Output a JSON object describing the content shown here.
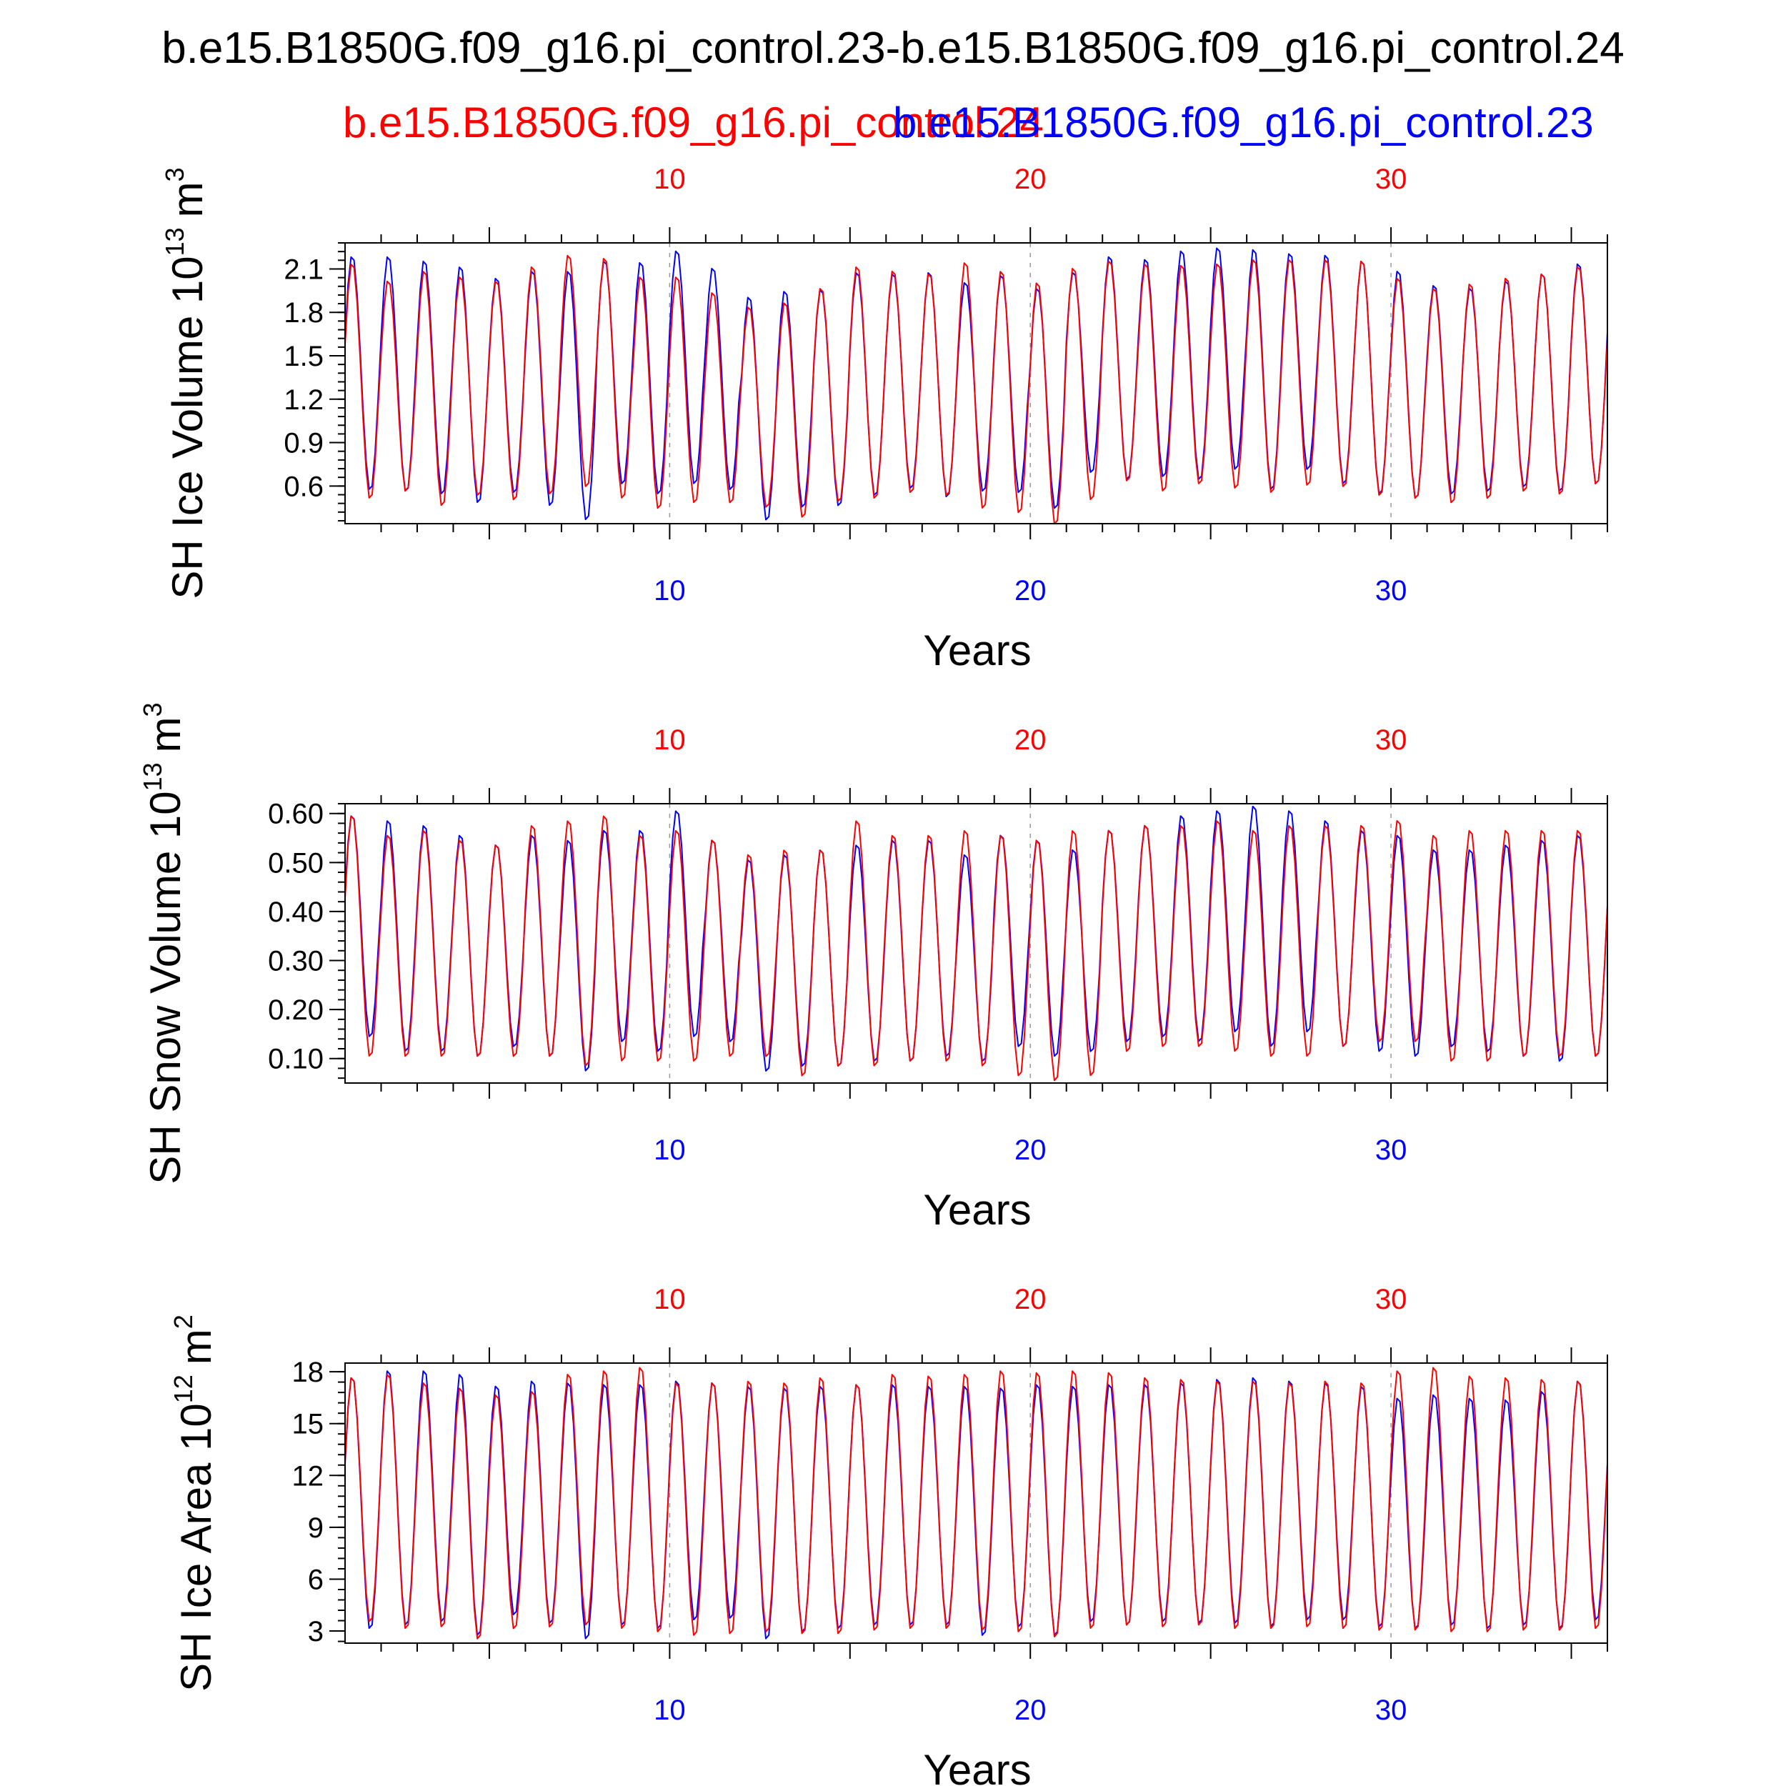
{
  "title": "b.e15.B1850G.f09_g16.pi_control.23-b.e15.B1850G.f09_g16.pi_control.24",
  "legend": [
    {
      "label": "b.e15.B1850G.f09_g16.pi_control.24",
      "color": "#ff0000"
    },
    {
      "label": "b.e15.B1850G.f09_g16.pi_control.23",
      "color": "#0000ff"
    }
  ],
  "colors": {
    "case24": "#ff0000",
    "case23": "#0000ff",
    "axes": "#000000",
    "reference_lines": "#999999"
  },
  "chart_data": [
    {
      "type": "line",
      "ylabel": "SH Ice Volume 10",
      "ylabel_exponent": "13",
      "ylabel_unit": "m",
      "ylabel_unit_exponent": "3",
      "xlabel": "Years",
      "xlim": [
        1.0,
        36.0
      ],
      "ylim": [
        0.34,
        2.28
      ],
      "yticks": [
        0.6,
        0.9,
        1.2,
        1.5,
        1.8,
        2.1
      ],
      "ytick_labels": [
        "0.6",
        "0.9",
        "1.2",
        "1.5",
        "1.8",
        "2.1"
      ],
      "xticks_top": [
        10,
        20,
        30
      ],
      "xticks_top_labels": [
        "10",
        "20",
        "30"
      ],
      "xticks_bottom": [
        10,
        20,
        30
      ],
      "xticks_bottom_labels": [
        "10",
        "20",
        "30"
      ],
      "reference_lines_x": [
        10,
        20,
        30
      ],
      "series": [
        {
          "name": "b.e15.B1850G.f09_g16.pi_control.23",
          "color": "#0000ff",
          "annual_max": [
            2.2,
            2.2,
            2.17,
            2.13,
            2.05,
            2.1,
            2.1,
            2.17,
            2.16,
            2.24,
            2.12,
            1.92,
            1.96,
            1.97,
            2.09,
            2.08,
            2.09,
            2.02,
            2.07,
            1.98,
            2.09,
            2.2,
            2.18,
            2.24,
            2.26,
            2.25,
            2.22,
            2.21,
            2.17,
            2.1,
            2.0,
            1.98,
            2.03,
            2.08,
            2.15,
            2.2
          ],
          "annual_min": [
            0.56,
            0.55,
            0.53,
            0.47,
            0.54,
            0.45,
            0.35,
            0.6,
            0.53,
            0.6,
            0.56,
            0.35,
            0.44,
            0.45,
            0.52,
            0.57,
            0.51,
            0.55,
            0.54,
            0.43,
            0.68,
            0.63,
            0.65,
            0.63,
            0.7,
            0.56,
            0.7,
            0.6,
            0.53,
            0.5,
            0.53,
            0.55,
            0.58,
            0.55,
            0.6,
            0.65
          ]
        },
        {
          "name": "b.e15.B1850G.f09_g16.pi_control.24",
          "color": "#ff0000",
          "annual_max": [
            2.15,
            2.03,
            2.1,
            2.06,
            2.03,
            2.13,
            2.21,
            2.19,
            2.06,
            2.06,
            1.95,
            1.85,
            1.88,
            1.98,
            2.13,
            2.1,
            2.08,
            2.16,
            2.1,
            2.02,
            2.12,
            2.17,
            2.15,
            2.14,
            2.15,
            2.18,
            2.18,
            2.18,
            2.17,
            2.05,
            1.98,
            2.01,
            2.05,
            2.08,
            2.13,
            2.13
          ],
          "annual_min": [
            0.5,
            0.55,
            0.45,
            0.52,
            0.49,
            0.53,
            0.58,
            0.5,
            0.43,
            0.47,
            0.47,
            0.44,
            0.37,
            0.48,
            0.5,
            0.54,
            0.52,
            0.43,
            0.4,
            0.32,
            0.49,
            0.62,
            0.55,
            0.6,
            0.57,
            0.54,
            0.59,
            0.58,
            0.52,
            0.5,
            0.47,
            0.5,
            0.55,
            0.53,
            0.6,
            0.62
          ]
        }
      ]
    },
    {
      "type": "line",
      "ylabel": "SH Snow Volume 10",
      "ylabel_exponent": "13",
      "ylabel_unit": "m",
      "ylabel_unit_exponent": "3",
      "xlabel": "Years",
      "xlim": [
        1.0,
        36.0
      ],
      "ylim": [
        0.05,
        0.62
      ],
      "yticks": [
        0.1,
        0.2,
        0.3,
        0.4,
        0.5,
        0.6
      ],
      "ytick_labels": [
        "0.10",
        "0.20",
        "0.30",
        "0.40",
        "0.50",
        "0.60"
      ],
      "xticks_top": [
        10,
        20,
        30
      ],
      "xticks_top_labels": [
        "10",
        "20",
        "30"
      ],
      "xticks_bottom": [
        10,
        20,
        30
      ],
      "xticks_bottom_labels": [
        "10",
        "20",
        "30"
      ],
      "reference_lines_x": [
        10,
        20,
        30
      ],
      "series": [
        {
          "name": "b.e15.B1850G.f09_g16.pi_control.23",
          "color": "#0000ff",
          "annual_max": [
            0.6,
            0.59,
            0.58,
            0.56,
            0.54,
            0.56,
            0.55,
            0.57,
            0.57,
            0.61,
            0.55,
            0.51,
            0.52,
            0.53,
            0.54,
            0.55,
            0.55,
            0.52,
            0.56,
            0.55,
            0.53,
            0.57,
            0.58,
            0.6,
            0.61,
            0.62,
            0.61,
            0.59,
            0.57,
            0.56,
            0.53,
            0.53,
            0.54,
            0.55,
            0.56,
            0.57
          ],
          "annual_min": [
            0.14,
            0.11,
            0.11,
            0.1,
            0.12,
            0.1,
            0.07,
            0.13,
            0.11,
            0.14,
            0.13,
            0.07,
            0.08,
            0.08,
            0.09,
            0.09,
            0.1,
            0.09,
            0.12,
            0.1,
            0.11,
            0.13,
            0.14,
            0.13,
            0.15,
            0.12,
            0.15,
            0.12,
            0.11,
            0.1,
            0.12,
            0.11,
            0.1,
            0.09,
            0.1,
            0.11
          ]
        },
        {
          "name": "b.e15.B1850G.f09_g16.pi_control.24",
          "color": "#ff0000",
          "annual_max": [
            0.6,
            0.56,
            0.57,
            0.55,
            0.54,
            0.58,
            0.59,
            0.6,
            0.56,
            0.57,
            0.55,
            0.52,
            0.53,
            0.53,
            0.59,
            0.56,
            0.56,
            0.57,
            0.56,
            0.55,
            0.57,
            0.57,
            0.58,
            0.58,
            0.59,
            0.57,
            0.58,
            0.58,
            0.58,
            0.59,
            0.56,
            0.57,
            0.57,
            0.57,
            0.57,
            0.57
          ],
          "annual_min": [
            0.1,
            0.1,
            0.1,
            0.1,
            0.1,
            0.1,
            0.08,
            0.09,
            0.09,
            0.09,
            0.1,
            0.1,
            0.06,
            0.08,
            0.08,
            0.09,
            0.09,
            0.08,
            0.06,
            0.05,
            0.06,
            0.11,
            0.12,
            0.12,
            0.11,
            0.1,
            0.1,
            0.12,
            0.13,
            0.13,
            0.09,
            0.09,
            0.1,
            0.1,
            0.1,
            0.11
          ]
        }
      ]
    },
    {
      "type": "line",
      "ylabel": "SH Ice Area 10",
      "ylabel_exponent": "12",
      "ylabel_unit": "m",
      "ylabel_unit_exponent": "2",
      "xlabel": "Years",
      "xlim": [
        1.0,
        36.0
      ],
      "ylim": [
        2.3,
        18.5
      ],
      "yticks": [
        3,
        6,
        9,
        12,
        15,
        18
      ],
      "ytick_labels": [
        "3",
        "6",
        "9",
        "12",
        "15",
        "18"
      ],
      "xticks_top": [
        10,
        20,
        30
      ],
      "xticks_top_labels": [
        "10",
        "20",
        "30"
      ],
      "xticks_bottom": [
        10,
        20,
        30
      ],
      "xticks_bottom_labels": [
        "10",
        "20",
        "30"
      ],
      "reference_lines_x": [
        10,
        20,
        30
      ],
      "series": [
        {
          "name": "b.e15.B1850G.f09_g16.pi_control.23",
          "color": "#0000ff",
          "annual_max": [
            17.8,
            18.2,
            18.2,
            18.0,
            17.3,
            17.6,
            17.5,
            17.4,
            17.4,
            17.6,
            17.5,
            17.3,
            17.2,
            17.3,
            17.4,
            17.4,
            17.3,
            17.3,
            17.2,
            17.4,
            17.3,
            17.4,
            17.4,
            17.5,
            17.7,
            17.8,
            17.6,
            17.5,
            17.3,
            16.6,
            16.8,
            16.6,
            16.5,
            17.0,
            17.6,
            17.5
          ],
          "annual_min": [
            3.0,
            3.2,
            3.4,
            2.6,
            3.8,
            3.3,
            2.4,
            3.2,
            3.0,
            3.5,
            3.6,
            2.4,
            2.8,
            3.0,
            3.2,
            3.2,
            3.2,
            2.6,
            3.1,
            2.6,
            3.4,
            3.2,
            3.4,
            3.3,
            3.3,
            3.1,
            3.5,
            3.5,
            3.1,
            3.0,
            3.2,
            3.0,
            3.2,
            3.0,
            3.5,
            3.6
          ]
        },
        {
          "name": "b.e15.B1850G.f09_g16.pi_control.24",
          "color": "#ff0000",
          "annual_max": [
            17.8,
            18.0,
            17.5,
            17.2,
            16.8,
            17.0,
            18.0,
            18.2,
            18.4,
            17.5,
            17.5,
            17.6,
            17.5,
            17.8,
            17.4,
            18.0,
            17.9,
            18.0,
            18.2,
            18.1,
            18.2,
            18.1,
            17.8,
            17.7,
            17.6,
            17.6,
            17.5,
            17.6,
            17.5,
            18.2,
            18.4,
            17.9,
            17.8,
            17.7,
            17.6,
            17.6
          ],
          "annual_min": [
            3.4,
            3.0,
            3.1,
            2.4,
            3.0,
            3.1,
            3.2,
            3.0,
            2.8,
            2.6,
            2.7,
            2.8,
            2.7,
            2.7,
            2.9,
            3.0,
            3.0,
            2.9,
            2.8,
            2.5,
            3.0,
            3.2,
            3.1,
            3.2,
            3.0,
            3.0,
            3.1,
            3.0,
            2.9,
            2.9,
            2.8,
            2.8,
            2.9,
            2.9,
            3.0,
            3.0
          ]
        }
      ]
    }
  ]
}
